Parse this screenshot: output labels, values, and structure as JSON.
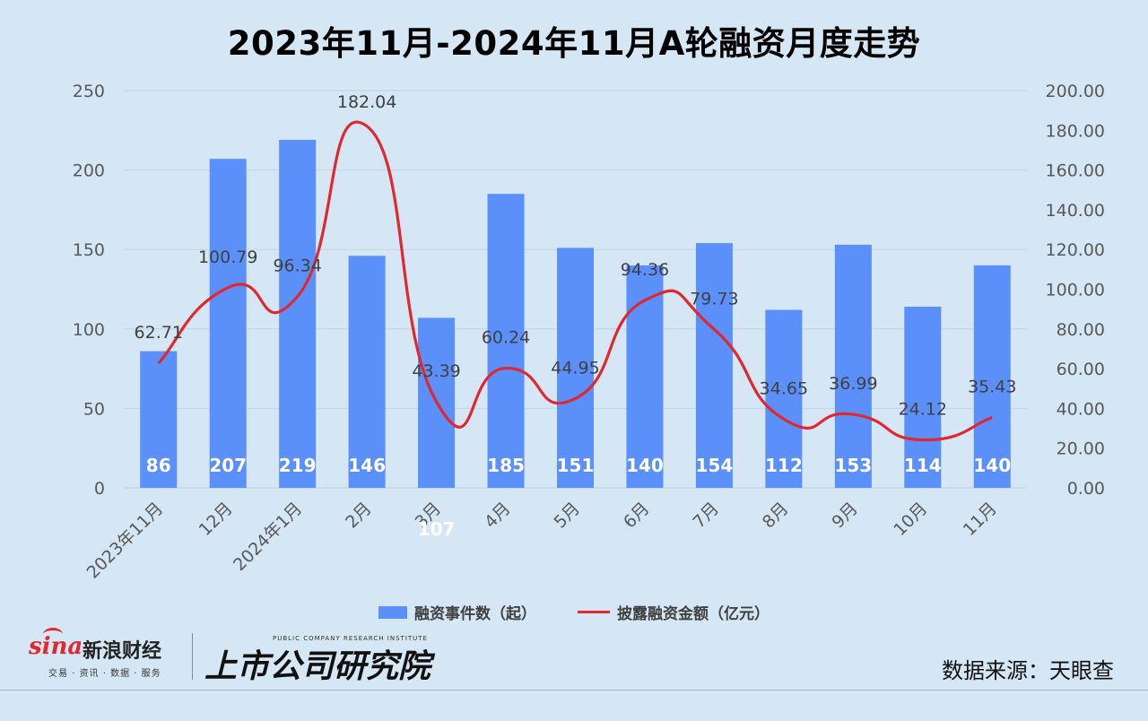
{
  "chart_data": {
    "type": "bar+line",
    "title": "2023年11月-2024年11月A轮融资月度走势",
    "categories": [
      "2023年11月",
      "12月",
      "2024年1月",
      "2月",
      "3月",
      "4月",
      "5月",
      "6月",
      "7月",
      "8月",
      "9月",
      "10月",
      "11月"
    ],
    "series": [
      {
        "name": "融资事件数（起）",
        "type": "bar",
        "axis": "left",
        "color": "#5b8ff9",
        "values": [
          86,
          207,
          219,
          146,
          107,
          185,
          151,
          140,
          154,
          112,
          153,
          114,
          140
        ],
        "labels": [
          "86",
          "207",
          "219",
          "146",
          "107",
          "185",
          "151",
          "140",
          "154",
          "112",
          "153",
          "114",
          "140"
        ]
      },
      {
        "name": "披露融资金额（亿元）",
        "type": "line",
        "smooth": true,
        "axis": "right",
        "color": "#e0282e",
        "values": [
          62.71,
          100.79,
          96.34,
          182.04,
          43.39,
          60.24,
          44.95,
          94.36,
          79.73,
          34.65,
          36.99,
          24.12,
          35.43
        ],
        "labels": [
          "62.71",
          "100.79",
          "96.34",
          "182.04",
          "43.39",
          "60.24",
          "44.95",
          "94.36",
          "79.73",
          "34.65",
          "36.99",
          "24.12",
          "35.43"
        ]
      }
    ],
    "y_left": {
      "min": 0,
      "max": 250,
      "ticks": [
        "0",
        "50",
        "100",
        "150",
        "200",
        "250"
      ]
    },
    "y_right": {
      "min": 0,
      "max": 200,
      "ticks": [
        "0.00",
        "20.00",
        "40.00",
        "60.00",
        "80.00",
        "100.00",
        "120.00",
        "140.00",
        "160.00",
        "180.00",
        "200.00"
      ]
    },
    "grid": true,
    "legend_position": "bottom"
  },
  "brand": {
    "sina_word": "sina",
    "sina_name": "新浪财经",
    "sina_tagline": "交易 · 资讯 · 数据 · 服务",
    "institute_en": "PUBLIC COMPANY RESEARCH INSTITUTE",
    "institute_cn": "上市公司研究院"
  },
  "source": "数据来源：天眼查"
}
